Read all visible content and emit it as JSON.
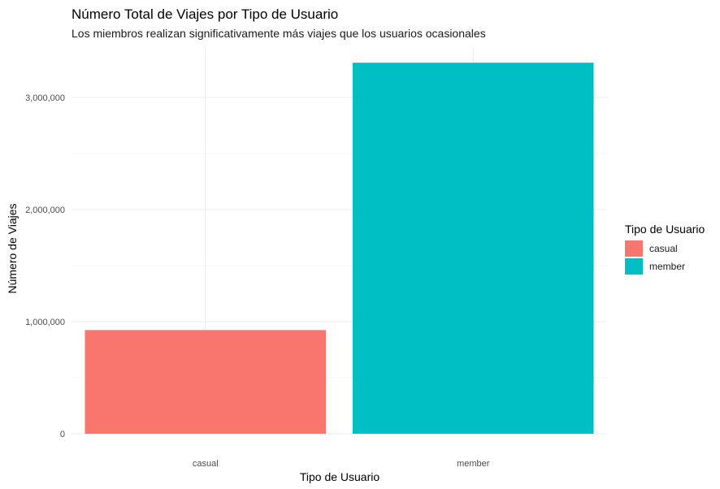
{
  "chart_data": {
    "type": "bar",
    "title": "Número Total de Viajes por Tipo de Usuario",
    "subtitle": "Los miembros realizan significativamente más viajes que los usuarios ocasionales",
    "xlabel": "Tipo de Usuario",
    "ylabel": "Número de Viajes",
    "categories": [
      "casual",
      "member"
    ],
    "values": [
      925000,
      3310000
    ],
    "colors": [
      "#F8766D",
      "#00BFC4"
    ],
    "ylim": [
      0,
      3310000
    ],
    "y_ticks": [
      0,
      1000000,
      2000000,
      3000000
    ],
    "y_tick_labels": [
      "0",
      "1,000,000",
      "2,000,000",
      "3,000,000"
    ],
    "grid": true,
    "legend": {
      "title": "Tipo de Usuario",
      "position": "right",
      "entries": [
        "casual",
        "member"
      ]
    }
  }
}
